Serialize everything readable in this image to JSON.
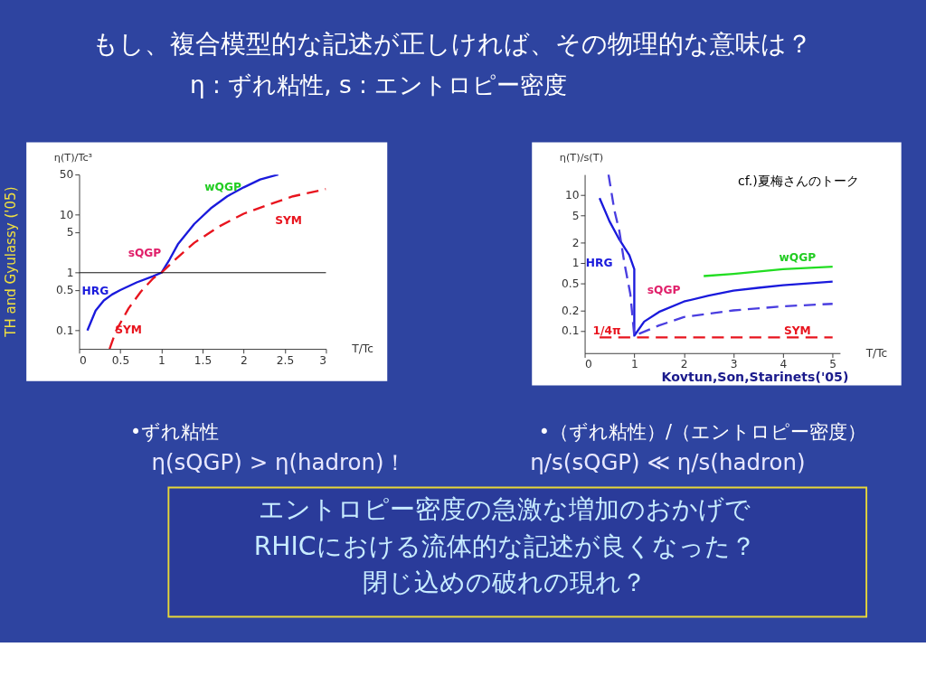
{
  "chart_data": [
    {
      "type": "line",
      "title": "もし、複合模型的な記述が正しければ、その物理的な意味は？",
      "subtitle": "η : ずれ粘性, s : エントロピー密度",
      "xlabel": "T/Tc",
      "ylabel": "η(T)/Tc³",
      "log": "y",
      "grid": false,
      "xlim": [
        0,
        3
      ],
      "xticks": [
        0,
        0.5,
        1,
        1.5,
        2,
        2.5,
        3
      ],
      "ylim": [
        0.048,
        50
      ],
      "yticks": [
        0.1,
        0.5,
        1,
        5,
        10,
        50
      ],
      "series": [
        {
          "color": "#1a1adc",
          "line_style": "solid",
          "x": [
            0.1,
            0.2,
            0.3,
            0.4,
            0.5,
            0.7,
            0.9,
            1,
            1.1,
            1.2,
            1.4,
            1.6,
            1.8,
            2,
            2.2,
            2.42
          ],
          "values": [
            0.1,
            0.22,
            0.33,
            0.42,
            0.5,
            0.68,
            0.87,
            1,
            1.7,
            3.1,
            7,
            13,
            21,
            30,
            41,
            50
          ]
        },
        {
          "color": "#e8141e",
          "line_style": "dashed",
          "x": [
            0.37,
            0.45,
            0.6,
            0.75,
            0.9,
            1,
            1.15,
            1.4,
            1.7,
            2,
            2.3,
            2.6,
            3
          ],
          "values": [
            0.048,
            0.1,
            0.24,
            0.47,
            0.8,
            1,
            1.6,
            3.3,
            6.3,
            10.5,
            15,
            21,
            28
          ]
        }
      ],
      "ref_lines": [
        {
          "axis": "y",
          "value": 1,
          "color": "#000000"
        }
      ],
      "annotations": [
        "TH and Gyulassy ('05)",
        "•ずれ粘性",
        "η(sQGP) > η(hadron)！",
        "wQGP",
        "SYM",
        "sQGP",
        "HRG",
        "SYM"
      ]
    },
    {
      "type": "line",
      "xlabel": "T/Tc",
      "ylabel": "η(T)/s(T)",
      "log": "y",
      "grid": false,
      "xlim": [
        0,
        5.15
      ],
      "xticks": [
        0,
        1,
        2,
        3,
        4,
        5
      ],
      "ylim": [
        0.047,
        20
      ],
      "yticks": [
        0.1,
        0.2,
        0.5,
        1,
        2,
        5,
        10
      ],
      "series": [
        {
          "color": "#1a1adc",
          "line_style": "solid",
          "x": [
            0.3,
            0.5,
            0.7,
            0.9,
            1,
            1,
            1.2,
            1.5,
            2,
            2.5,
            3,
            3.5,
            4,
            4.5,
            5
          ],
          "values": [
            9,
            4.1,
            2.2,
            1.3,
            0.81,
            0.085,
            0.137,
            0.19,
            0.27,
            0.33,
            0.39,
            0.43,
            0.47,
            0.5,
            0.53
          ]
        },
        {
          "color": "#4a3ee0",
          "line_style": "dashed",
          "x": [
            0.48,
            0.6,
            0.7,
            0.8,
            0.92,
            1,
            1.5,
            2,
            3,
            4,
            5
          ],
          "values": [
            20,
            5.9,
            2.9,
            1,
            0.35,
            0.085,
            0.12,
            0.16,
            0.2,
            0.23,
            0.25
          ]
        },
        {
          "color": "#22dd22",
          "line_style": "solid",
          "x": [
            2.4,
            3,
            4,
            5
          ],
          "values": [
            0.64,
            0.69,
            0.81,
            0.88
          ]
        },
        {
          "color": "#e8141e",
          "line_style": "dashed",
          "x": [
            0.3,
            5
          ],
          "values": [
            0.08,
            0.08
          ]
        }
      ],
      "annotations": [
        "Kovtun,Son,Starinets('05)",
        "•（ずれ粘性）/（エントロピー密度）",
        "η/s(sQGP) ≪ η/s(hadron)",
        "エントロピー密度の急激な増加のおかげで",
        "RHICにおける流体的な記述が良くなった？",
        "閉じ込めの破れの現れ？",
        "cf.)夏梅さんのトーク",
        "HRG",
        "sQGP",
        "wQGP",
        "SYM",
        "1/4π"
      ]
    }
  ]
}
